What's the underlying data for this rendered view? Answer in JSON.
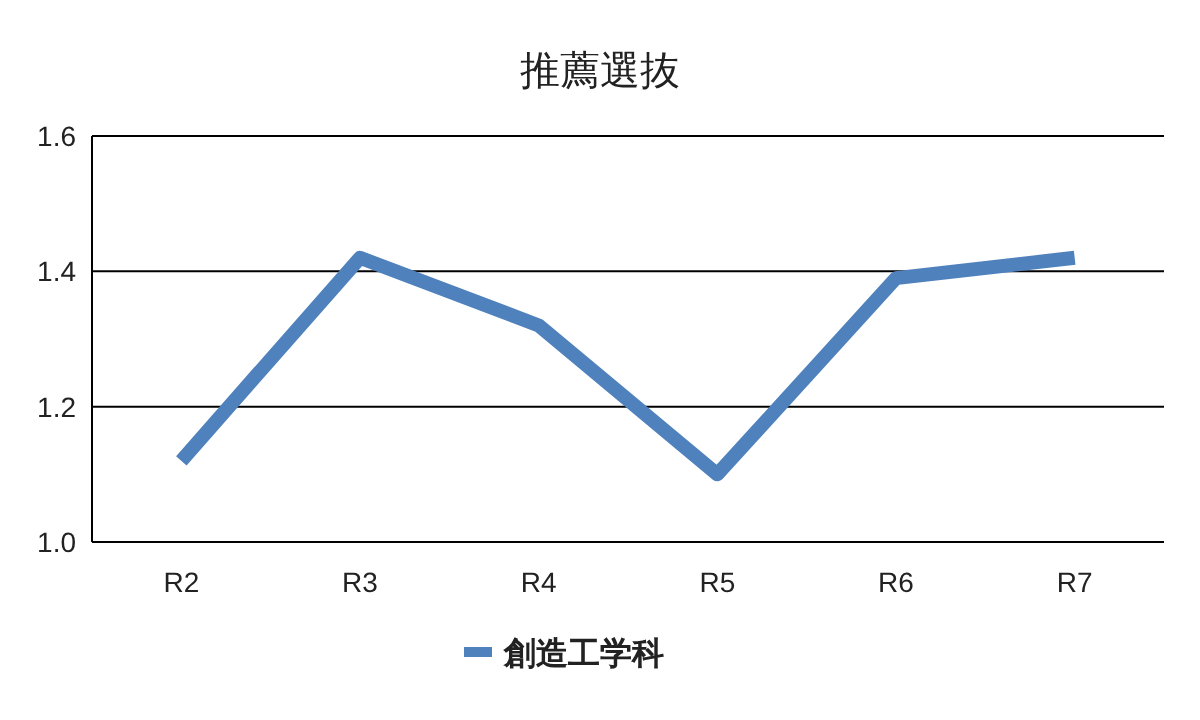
{
  "chart_data": {
    "type": "line",
    "title": "推薦選抜",
    "categories": [
      "R2",
      "R3",
      "R4",
      "R5",
      "R6",
      "R7"
    ],
    "series": [
      {
        "name": "創造工学科",
        "color": "#4f81bd",
        "values": [
          1.12,
          1.42,
          1.32,
          1.1,
          1.39,
          1.42
        ]
      }
    ],
    "ylim": [
      1.0,
      1.6
    ],
    "yticks": [
      {
        "value": 1.0,
        "label": "1.0"
      },
      1.2,
      1.4,
      1.6
    ],
    "grid": "y",
    "legend": "bottom",
    "marker": "none"
  }
}
